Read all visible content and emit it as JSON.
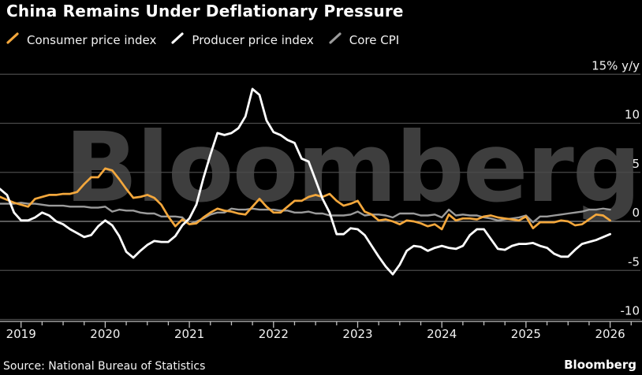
{
  "header": {
    "title": "China Remains Under Deflationary Pressure"
  },
  "legend": {
    "items": [
      {
        "label": "Consumer price index",
        "color": "#F3A73C"
      },
      {
        "label": "Producer price index",
        "color": "#FFFFFF"
      },
      {
        "label": "Core CPI",
        "color": "#9B9B9B"
      }
    ]
  },
  "watermark": {
    "text": "Bloomberg"
  },
  "footer": {
    "source": "Source: National Bureau of Statistics",
    "brand": "Bloomberg"
  },
  "chart_data": {
    "type": "line",
    "title": "China Remains Under Deflationary Pressure",
    "unit": "% y/y",
    "frequency": "monthly",
    "x_start": "2018-10",
    "x_end": "2026-01",
    "x_axis": {
      "year_labels": [
        "2019",
        "2020",
        "2021",
        "2022",
        "2023",
        "2024",
        "2025",
        "2026"
      ],
      "minor_ticks": "quarterly"
    },
    "y_axis": {
      "ticks": [
        {
          "value": 15,
          "label": "15% y/y"
        },
        {
          "value": 10,
          "label": "10"
        },
        {
          "value": 5,
          "label": "5"
        },
        {
          "value": 0,
          "label": "0"
        },
        {
          "value": -5,
          "label": "-5"
        },
        {
          "value": -10,
          "label": "-10"
        }
      ],
      "range": [
        -11,
        16
      ],
      "grid": "horizontal",
      "labels_position": "right"
    },
    "legend_position": "top-left",
    "colors": {
      "background": "#000000",
      "gridline": "#4A4A4A",
      "zero_line": "#8E8E8E",
      "axis_line": "#BFBFBF",
      "axis_text": "#F2F2F2",
      "watermark": "#3E3E3E"
    },
    "z_order": [
      "core",
      "cpi",
      "ppi"
    ],
    "series": [
      {
        "key": "cpi",
        "name": "Consumer price index",
        "color": "#F3A73C",
        "width": 2.7,
        "values": [
          2.5,
          2.2,
          1.9,
          1.7,
          1.5,
          2.3,
          2.5,
          2.7,
          2.7,
          2.8,
          2.8,
          3.0,
          3.8,
          4.5,
          4.5,
          5.4,
          5.2,
          4.3,
          3.3,
          2.4,
          2.5,
          2.7,
          2.4,
          1.7,
          0.5,
          -0.5,
          0.2,
          -0.3,
          -0.2,
          0.4,
          0.9,
          1.3,
          1.1,
          1.0,
          0.8,
          0.7,
          1.5,
          2.3,
          1.5,
          0.9,
          0.9,
          1.5,
          2.1,
          2.1,
          2.5,
          2.7,
          2.5,
          2.8,
          2.1,
          1.6,
          1.8,
          2.1,
          1.0,
          0.7,
          0.1,
          0.2,
          0.0,
          -0.3,
          0.1,
          0.0,
          -0.2,
          -0.5,
          -0.3,
          -0.8,
          0.7,
          0.1,
          0.3,
          0.3,
          0.2,
          0.5,
          0.6,
          0.4,
          0.3,
          0.2,
          0.1,
          0.5,
          -0.7,
          -0.1,
          -0.1,
          -0.1,
          0.1,
          0.0,
          -0.4,
          -0.3,
          0.2,
          0.7,
          0.6,
          0.1
        ]
      },
      {
        "key": "ppi",
        "name": "Producer price index",
        "color": "#FFFFFF",
        "width": 2.8,
        "values": [
          3.3,
          2.7,
          0.9,
          0.1,
          0.1,
          0.4,
          0.9,
          0.6,
          0.0,
          -0.3,
          -0.8,
          -1.2,
          -1.6,
          -1.4,
          -0.5,
          0.1,
          -0.4,
          -1.5,
          -3.1,
          -3.7,
          -3.0,
          -2.4,
          -2.0,
          -2.1,
          -2.1,
          -1.5,
          -0.4,
          0.3,
          1.7,
          4.4,
          6.8,
          9.0,
          8.8,
          9.0,
          9.5,
          10.7,
          13.5,
          12.9,
          10.3,
          9.1,
          8.8,
          8.3,
          8.0,
          6.4,
          6.1,
          4.2,
          2.3,
          0.9,
          -1.3,
          -1.3,
          -0.7,
          -0.8,
          -1.4,
          -2.5,
          -3.6,
          -4.6,
          -5.4,
          -4.4,
          -3.0,
          -2.5,
          -2.6,
          -3.0,
          -2.7,
          -2.5,
          -2.7,
          -2.8,
          -2.5,
          -1.4,
          -0.8,
          -0.8,
          -1.8,
          -2.8,
          -2.9,
          -2.5,
          -2.3,
          -2.3,
          -2.2,
          -2.5,
          -2.7,
          -3.3,
          -3.6,
          -3.6,
          -2.9,
          -2.3,
          -2.1,
          -1.9,
          -1.6,
          -1.3
        ]
      },
      {
        "key": "core",
        "name": "Core CPI",
        "color": "#9B9B9B",
        "width": 2.4,
        "values": [
          1.8,
          1.8,
          1.8,
          1.9,
          1.8,
          1.8,
          1.7,
          1.6,
          1.6,
          1.6,
          1.5,
          1.5,
          1.5,
          1.4,
          1.4,
          1.5,
          1.0,
          1.2,
          1.1,
          1.1,
          0.9,
          0.8,
          0.8,
          0.5,
          0.5,
          0.5,
          0.4,
          -0.3,
          0.0,
          0.3,
          0.7,
          0.9,
          0.9,
          1.3,
          1.2,
          1.2,
          1.3,
          1.2,
          1.2,
          1.2,
          1.1,
          1.1,
          0.9,
          0.9,
          1.0,
          0.8,
          0.8,
          0.6,
          0.6,
          0.6,
          0.7,
          1.0,
          0.6,
          0.7,
          0.7,
          0.6,
          0.4,
          0.8,
          0.8,
          0.8,
          0.6,
          0.6,
          0.7,
          0.4,
          1.2,
          0.6,
          0.7,
          0.6,
          0.6,
          0.4,
          0.3,
          0.1,
          0.2,
          0.3,
          0.4,
          0.6,
          -0.1,
          0.5,
          0.5,
          0.6,
          0.7,
          0.8,
          0.9,
          1.0,
          1.2,
          1.2,
          1.3,
          1.2
        ]
      }
    ]
  }
}
